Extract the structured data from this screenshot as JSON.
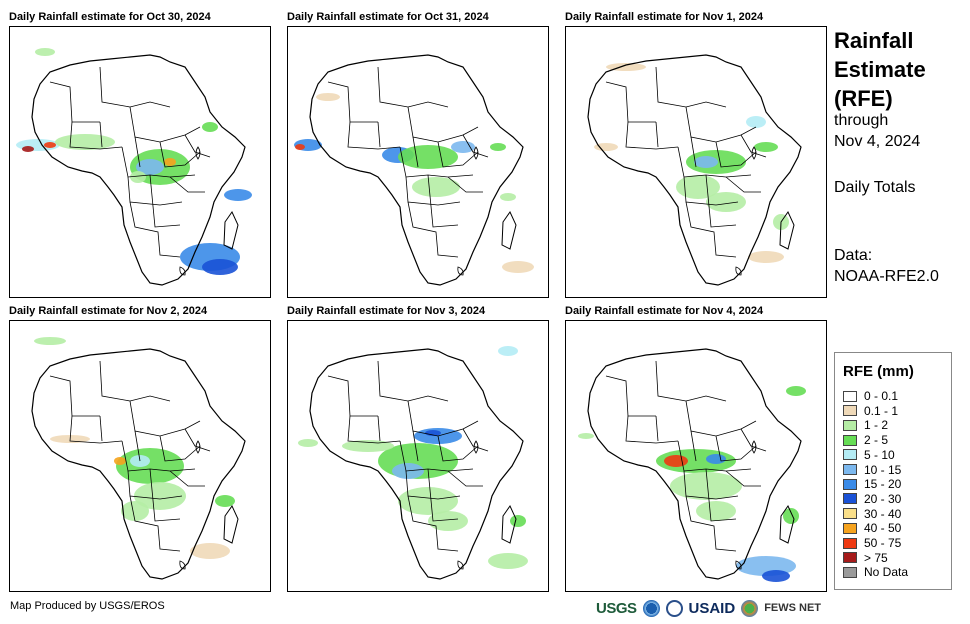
{
  "panels": [
    {
      "title": "Daily Rainfall estimate for Oct 30, 2024"
    },
    {
      "title": "Daily Rainfall estimate for Oct 31, 2024"
    },
    {
      "title": "Daily Rainfall estimate for Nov 1, 2024"
    },
    {
      "title": "Daily Rainfall estimate for Nov 2, 2024"
    },
    {
      "title": "Daily Rainfall estimate for Nov 3, 2024"
    },
    {
      "title": "Daily Rainfall estimate for Nov 4, 2024"
    }
  ],
  "side": {
    "title_line1": "Rainfall",
    "title_line2": "Estimate",
    "title_line3": "(RFE)",
    "through": "through",
    "date": "Nov 4, 2024",
    "totals": "Daily Totals",
    "data_label": "Data:",
    "data_source": "NOAA-RFE2.0"
  },
  "legend": {
    "title": "RFE (mm)",
    "items": [
      {
        "label": "0 - 0.1",
        "color": "#ffffff"
      },
      {
        "label": "0.1 - 1",
        "color": "#efd9b8"
      },
      {
        "label": "1 - 2",
        "color": "#b5eda5"
      },
      {
        "label": "2 - 5",
        "color": "#66dd55"
      },
      {
        "label": "5 - 10",
        "color": "#b4ecf5"
      },
      {
        "label": "10 - 15",
        "color": "#7cb8ee"
      },
      {
        "label": "15 - 20",
        "color": "#3a8be8"
      },
      {
        "label": "20 - 30",
        "color": "#1a52d6"
      },
      {
        "label": "30 - 40",
        "color": "#fbe08a"
      },
      {
        "label": "40 - 50",
        "color": "#f6a31e"
      },
      {
        "label": "50 - 75",
        "color": "#ee3a12"
      },
      {
        "label": "> 75",
        "color": "#a51a1a"
      },
      {
        "label": "No Data",
        "color": "#9a9a9a"
      }
    ]
  },
  "footer": {
    "credit": "Map Produced by USGS/EROS",
    "logos": {
      "usgs": "USGS",
      "usaid": "USAID",
      "fews": "FEWS NET"
    }
  }
}
